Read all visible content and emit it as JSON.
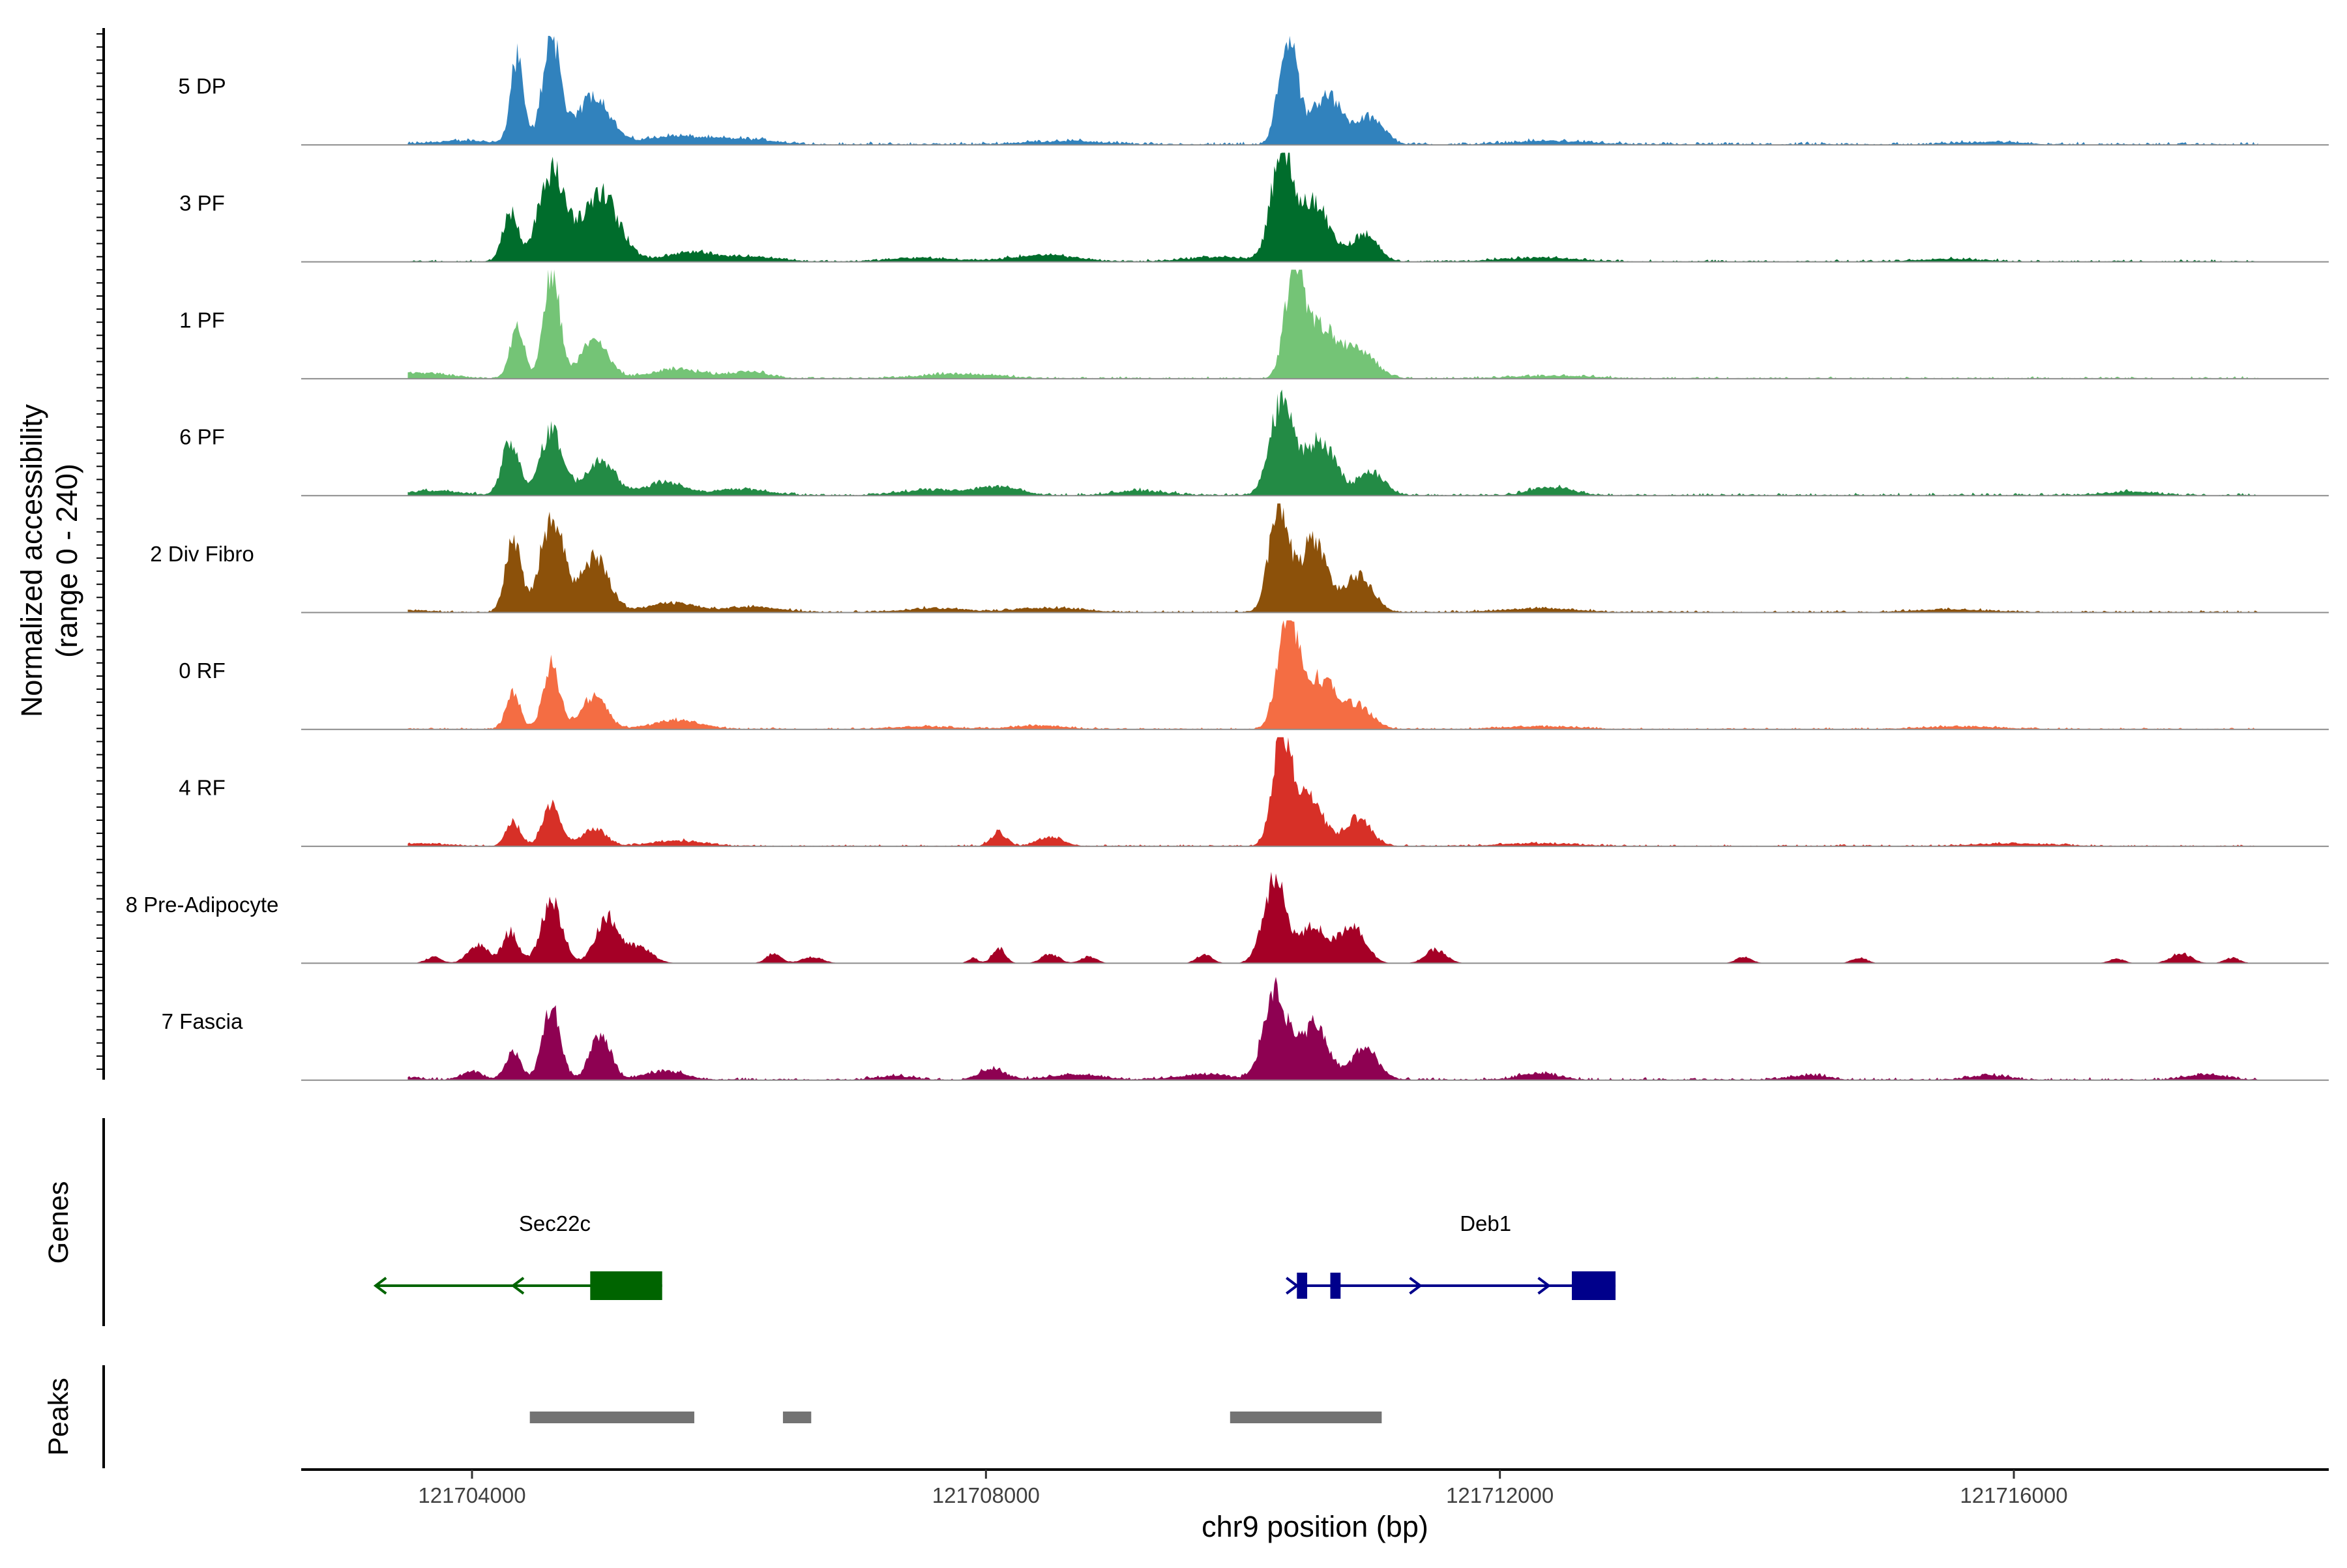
{
  "chart_data": {
    "type": "area",
    "title": "",
    "ylabel": "Normalized accessibility",
    "ylabel_range": "(range 0 - 240)",
    "ylim": [
      0,
      240
    ],
    "xlabel": "chr9 position (bp)",
    "xlim": [
      121702700,
      121718700
    ],
    "x_ticks": [
      121704000,
      121708000,
      121712000,
      121716000
    ],
    "x_tick_labels": [
      "121704000",
      "121708000",
      "121712000",
      "121716000"
    ],
    "grid": false,
    "series": [
      {
        "name": "5 DP",
        "color": "#3182BD",
        "peaks": [
          [
            121704350,
            190,
            50
          ],
          [
            121704620,
            240,
            70
          ],
          [
            121704950,
            110,
            120
          ],
          [
            121705550,
            18,
            220
          ],
          [
            121706100,
            12,
            250
          ],
          [
            121702900,
            6,
            250
          ],
          [
            121703950,
            8,
            250
          ],
          [
            121708600,
            8,
            300
          ],
          [
            121710350,
            240,
            70
          ],
          [
            121710650,
            110,
            120
          ],
          [
            121711000,
            60,
            100
          ],
          [
            121712400,
            8,
            300
          ],
          [
            121715800,
            6,
            250
          ]
        ],
        "noise": 8,
        "span": [
          121703500,
          121717900
        ]
      },
      {
        "name": "3 PF",
        "color": "#006D2C",
        "peaks": [
          [
            121704300,
            110,
            60
          ],
          [
            121704620,
            200,
            100
          ],
          [
            121705000,
            150,
            140
          ],
          [
            121705700,
            20,
            200
          ],
          [
            121706200,
            10,
            200
          ],
          [
            121707500,
            8,
            250
          ],
          [
            121708450,
            14,
            250
          ],
          [
            121709800,
            10,
            250
          ],
          [
            121710300,
            240,
            80
          ],
          [
            121710550,
            130,
            120
          ],
          [
            121710950,
            60,
            100
          ],
          [
            121712300,
            8,
            300
          ],
          [
            121715500,
            6,
            250
          ]
        ],
        "noise": 6,
        "span": [
          121703500,
          121717900
        ]
      },
      {
        "name": "1 PF",
        "color": "#74C476",
        "peaks": [
          [
            121704350,
            110,
            55
          ],
          [
            121704620,
            240,
            60
          ],
          [
            121704950,
            80,
            110
          ],
          [
            121705600,
            20,
            200
          ],
          [
            121706150,
            15,
            150
          ],
          [
            121703600,
            12,
            220
          ],
          [
            121707800,
            10,
            300
          ],
          [
            121710400,
            240,
            70
          ],
          [
            121710600,
            110,
            120
          ],
          [
            121710900,
            60,
            130
          ],
          [
            121712400,
            6,
            300
          ]
        ],
        "noise": 6,
        "span": [
          121703500,
          121717900
        ]
      },
      {
        "name": "6 PF",
        "color": "#238B45",
        "peaks": [
          [
            121704300,
            120,
            65
          ],
          [
            121704620,
            140,
            90
          ],
          [
            121705000,
            80,
            110
          ],
          [
            121705500,
            30,
            150
          ],
          [
            121706100,
            14,
            200
          ],
          [
            121703700,
            10,
            200
          ],
          [
            121707600,
            12,
            250
          ],
          [
            121708100,
            18,
            160
          ],
          [
            121709200,
            10,
            200
          ],
          [
            121710300,
            200,
            90
          ],
          [
            121710600,
            120,
            120
          ],
          [
            121711000,
            50,
            100
          ],
          [
            121712400,
            18,
            160
          ],
          [
            121716900,
            8,
            200
          ]
        ],
        "noise": 7,
        "span": [
          121703500,
          121717900
        ]
      },
      {
        "name": "2 Div Fibro",
        "color": "#8C510A",
        "peaks": [
          [
            121704320,
            160,
            60
          ],
          [
            121704620,
            205,
            90
          ],
          [
            121704950,
            120,
            110
          ],
          [
            121705550,
            20,
            200
          ],
          [
            121706200,
            12,
            200
          ],
          [
            121703400,
            6,
            200
          ],
          [
            121707600,
            8,
            250
          ],
          [
            121708500,
            10,
            250
          ],
          [
            121710280,
            240,
            75
          ],
          [
            121710550,
            160,
            100
          ],
          [
            121710900,
            80,
            110
          ],
          [
            121712300,
            8,
            300
          ],
          [
            121715500,
            6,
            300
          ]
        ],
        "noise": 6,
        "span": [
          121703500,
          121717900
        ]
      },
      {
        "name": "0 RF",
        "color": "#F46D43",
        "peaks": [
          [
            121704320,
            80,
            55
          ],
          [
            121704620,
            140,
            65
          ],
          [
            121704950,
            70,
            100
          ],
          [
            121705600,
            20,
            180
          ],
          [
            121707500,
            6,
            250
          ],
          [
            121708400,
            8,
            200
          ],
          [
            121710350,
            240,
            80
          ],
          [
            121710600,
            110,
            120
          ],
          [
            121710900,
            50,
            110
          ],
          [
            121712300,
            6,
            300
          ],
          [
            121715600,
            6,
            300
          ]
        ],
        "noise": 5,
        "span": [
          121703500,
          121717900
        ]
      },
      {
        "name": "4 RF",
        "color": "#D73027",
        "peaks": [
          [
            121704320,
            55,
            55
          ],
          [
            121704620,
            90,
            70
          ],
          [
            121704950,
            40,
            90
          ],
          [
            121705600,
            12,
            200
          ],
          [
            121703600,
            6,
            200
          ],
          [
            121708100,
            30,
            60
          ],
          [
            121708500,
            20,
            100
          ],
          [
            121710300,
            240,
            70
          ],
          [
            121710500,
            110,
            120
          ],
          [
            121710900,
            60,
            100
          ],
          [
            121712300,
            6,
            300
          ],
          [
            121716000,
            6,
            300
          ]
        ],
        "noise": 5,
        "span": [
          121703500,
          121717900
        ]
      },
      {
        "name": "8 Pre-Adipocyte",
        "color": "#A50026",
        "peaks": [
          [
            121704050,
            40,
            80
          ],
          [
            121704300,
            70,
            60
          ],
          [
            121704620,
            140,
            80
          ],
          [
            121705050,
            100,
            90
          ],
          [
            121705300,
            35,
            100
          ],
          [
            121703700,
            14,
            60
          ],
          [
            121706350,
            22,
            60
          ],
          [
            121706650,
            14,
            80
          ],
          [
            121707900,
            12,
            40
          ],
          [
            121708100,
            35,
            50
          ],
          [
            121708500,
            20,
            70
          ],
          [
            121708800,
            15,
            60
          ],
          [
            121709700,
            20,
            60
          ],
          [
            121710250,
            180,
            90
          ],
          [
            121710550,
            80,
            100
          ],
          [
            121710850,
            85,
            100
          ],
          [
            121711500,
            30,
            80
          ],
          [
            121713900,
            14,
            60
          ],
          [
            121714800,
            12,
            60
          ],
          [
            121716800,
            10,
            60
          ],
          [
            121717300,
            22,
            80
          ],
          [
            121717700,
            12,
            60
          ]
        ],
        "noise": 0,
        "span": [
          121703500,
          121717900
        ]
      },
      {
        "name": "7 Fascia",
        "color": "#8E0152",
        "peaks": [
          [
            121704000,
            20,
            80
          ],
          [
            121704320,
            60,
            60
          ],
          [
            121704620,
            155,
            70
          ],
          [
            121705000,
            100,
            80
          ],
          [
            121705500,
            20,
            150
          ],
          [
            121703400,
            8,
            150
          ],
          [
            121707300,
            8,
            150
          ],
          [
            121708050,
            25,
            100
          ],
          [
            121708700,
            12,
            200
          ],
          [
            121709700,
            12,
            200
          ],
          [
            121710250,
            200,
            90
          ],
          [
            121710550,
            120,
            110
          ],
          [
            121710950,
            70,
            100
          ],
          [
            121712300,
            14,
            150
          ],
          [
            121714400,
            10,
            150
          ],
          [
            121715800,
            10,
            150
          ],
          [
            121717500,
            12,
            150
          ]
        ],
        "noise": 7,
        "span": [
          121703500,
          121717900
        ]
      }
    ],
    "genes": [
      {
        "name": "Sec22c",
        "strand": "-",
        "color": "#006400",
        "start": 121703250,
        "end": 121705480,
        "exons": [
          [
            121704920,
            121705480
          ]
        ],
        "arrows": [
          121703250,
          121704320
        ]
      },
      {
        "name": "Deb1",
        "strand": "+",
        "color": "#00008B",
        "start": 121710420,
        "end": 121712900,
        "exons": [
          [
            121710420,
            121710500
          ],
          [
            121710680,
            121710760
          ],
          [
            121712560,
            121712900
          ]
        ],
        "arrows": [
          121710420,
          121711380,
          121712380
        ]
      }
    ],
    "peaks": [
      [
        121704450,
        121705730
      ],
      [
        121706420,
        121706640
      ],
      [
        121709900,
        121711080
      ]
    ],
    "peak_color": "#737373"
  },
  "panels": {
    "genes_title": "Genes",
    "peaks_title": "Peaks"
  }
}
